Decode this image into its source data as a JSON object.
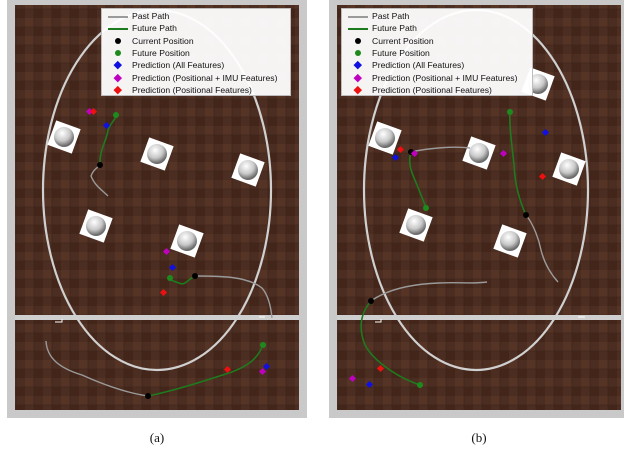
{
  "legend": {
    "items": [
      {
        "label": "Past Path",
        "kind": "line",
        "color": "#9a9a9a"
      },
      {
        "label": "Future Path",
        "kind": "line",
        "color": "#1e7a1e"
      },
      {
        "label": "Current Position",
        "kind": "dot",
        "color": "#000000"
      },
      {
        "label": "Future Position",
        "kind": "dot",
        "color": "#1e8a1e"
      },
      {
        "label": "Prediction (All Features)",
        "kind": "diamond",
        "color": "#1010e0"
      },
      {
        "label": "Prediction (Positional + IMU Features)",
        "kind": "diamond",
        "color": "#c000c0"
      },
      {
        "label": "Prediction (Positional Features)",
        "kind": "diamond",
        "color": "#ee1010"
      }
    ]
  },
  "colors": {
    "floor": "#4b2d22",
    "floor_dark": "#3a2219",
    "frame": "#c9c9c9",
    "track": "#d0d0d0",
    "past_path": "#9a9a9a",
    "future_path": "#1e7a1e"
  },
  "captions": {
    "a": "(a)",
    "b": "(b)"
  }
}
